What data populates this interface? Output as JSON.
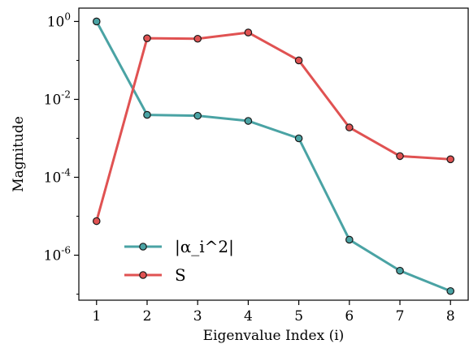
{
  "chart_data": {
    "type": "line",
    "x": [
      1,
      2,
      3,
      4,
      5,
      6,
      7,
      8
    ],
    "series": [
      {
        "name": "|α_i^2|",
        "color": "#4aa3a4",
        "values": [
          1.0,
          0.004,
          0.0038,
          0.0028,
          0.001,
          2.5e-06,
          4e-07,
          1.2e-07
        ]
      },
      {
        "name": "S",
        "color": "#e05252",
        "values": [
          7.5e-06,
          0.37,
          0.36,
          0.52,
          0.1,
          0.0019,
          0.00035,
          0.00029
        ]
      }
    ],
    "xlabel": "Eigenvalue Index (i)",
    "ylabel": "Magnitude",
    "yscale": "log",
    "ylim": [
      7e-08,
      2.2
    ],
    "xlim": [
      0.65,
      8.35
    ],
    "x_ticks": [
      "1",
      "2",
      "3",
      "4",
      "5",
      "6",
      "7",
      "8"
    ],
    "y_ticks": [
      {
        "base": "10",
        "exp": "0",
        "value": 1
      },
      {
        "base": "10",
        "exp": "-2",
        "value": 0.01
      },
      {
        "base": "10",
        "exp": "-4",
        "value": 0.0001
      },
      {
        "base": "10",
        "exp": "-6",
        "value": 1e-06
      }
    ],
    "grid": false,
    "legend_position": "lower-left",
    "marker_edge_color": "#1a1a1a"
  }
}
